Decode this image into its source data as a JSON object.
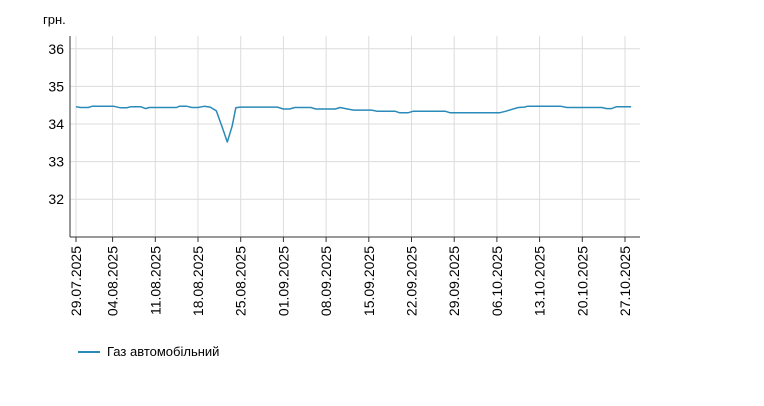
{
  "chart_data": {
    "type": "line",
    "unit_label": "грн.",
    "y_ticks": [
      32,
      33,
      34,
      35,
      36
    ],
    "ylim": [
      31,
      36.5
    ],
    "x_tick_labels": [
      "29.07.2025",
      "04.08.2025",
      "11.08.2025",
      "18.08.2025",
      "25.08.2025",
      "01.09.2025",
      "08.09.2025",
      "15.09.2025",
      "22.09.2025",
      "29.09.2025",
      "06.10.2025",
      "13.10.2025",
      "20.10.2025",
      "27.10.2025"
    ],
    "x_tick_days": [
      0,
      6,
      13,
      20,
      27,
      34,
      41,
      48,
      55,
      62,
      69,
      76,
      83,
      90
    ],
    "grid": true,
    "legend_position": "bottom-left",
    "series": [
      {
        "name": "Газ автомобільний",
        "color": "#2a8ab8",
        "points": [
          [
            0,
            34.46
          ],
          [
            0.7,
            34.44
          ],
          [
            2,
            34.44
          ],
          [
            2.6,
            34.47
          ],
          [
            6.2,
            34.47
          ],
          [
            7.3,
            34.43
          ],
          [
            8.3,
            34.43
          ],
          [
            9,
            34.46
          ],
          [
            10.6,
            34.46
          ],
          [
            11.4,
            34.41
          ],
          [
            12,
            34.44
          ],
          [
            16.5,
            34.44
          ],
          [
            16.9,
            34.47
          ],
          [
            18.2,
            34.47
          ],
          [
            19,
            34.44
          ],
          [
            20,
            34.44
          ],
          [
            21,
            34.47
          ],
          [
            22,
            34.45
          ],
          [
            23,
            34.35
          ],
          [
            24,
            33.9
          ],
          [
            24.8,
            33.52
          ],
          [
            25.6,
            33.95
          ],
          [
            26.2,
            34.43
          ],
          [
            26.9,
            34.45
          ],
          [
            33,
            34.45
          ],
          [
            34,
            34.4
          ],
          [
            35,
            34.4
          ],
          [
            35.9,
            34.44
          ],
          [
            38.5,
            34.44
          ],
          [
            39.3,
            34.4
          ],
          [
            42.5,
            34.4
          ],
          [
            43.3,
            34.44
          ],
          [
            44.5,
            34.4
          ],
          [
            45.5,
            34.37
          ],
          [
            48.5,
            34.37
          ],
          [
            49.3,
            34.34
          ],
          [
            52.3,
            34.34
          ],
          [
            53,
            34.3
          ],
          [
            54.5,
            34.3
          ],
          [
            55.3,
            34.34
          ],
          [
            60.5,
            34.34
          ],
          [
            61.3,
            34.3
          ],
          [
            69.5,
            34.3
          ],
          [
            70.5,
            34.34
          ],
          [
            71.5,
            34.39
          ],
          [
            72.5,
            34.44
          ],
          [
            73.5,
            34.45
          ],
          [
            74,
            34.47
          ],
          [
            79.5,
            34.47
          ],
          [
            80.5,
            34.44
          ],
          [
            86.2,
            34.44
          ],
          [
            87,
            34.41
          ],
          [
            87.8,
            34.41
          ],
          [
            88.6,
            34.46
          ],
          [
            91,
            34.46
          ]
        ]
      }
    ]
  }
}
